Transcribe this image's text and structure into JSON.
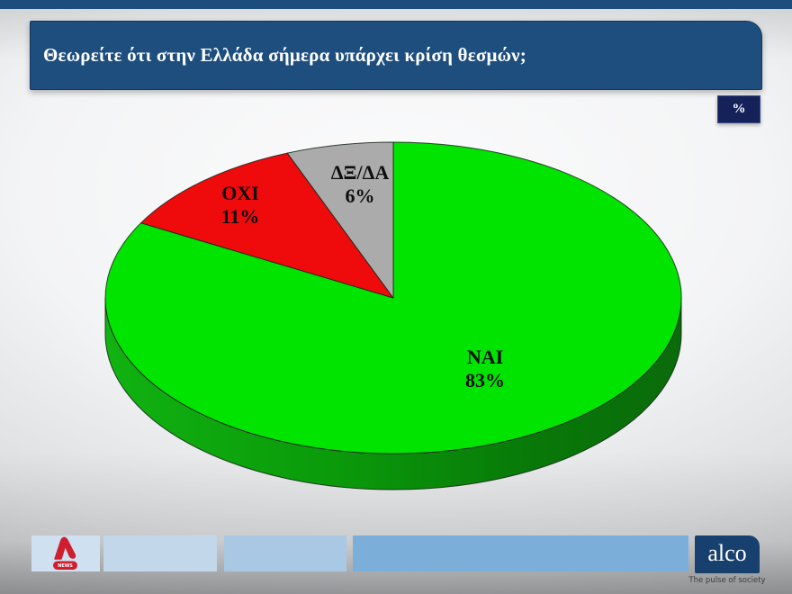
{
  "header": {
    "title": "Θεωρείτε ότι στην Ελλάδα σήμερα υπάρχει κρίση θεσμών;"
  },
  "unit_badge": {
    "label": "%"
  },
  "chart_data": {
    "type": "pie",
    "style": "3d",
    "start_angle_deg": 0,
    "direction": "clockwise",
    "unit": "%",
    "categories": [
      "NAI",
      "OXI",
      "ΔΞ/ΔΑ"
    ],
    "values": [
      83,
      11,
      6
    ],
    "slices": [
      {
        "label": "NAI",
        "value": 83,
        "pct": "83%",
        "color": "#00e400"
      },
      {
        "label": "OXI",
        "value": 11,
        "pct": "11%",
        "color": "#ef0b0b"
      },
      {
        "label": "ΔΞ/ΔΑ",
        "value": 6,
        "pct": "6%",
        "color": "#ababab"
      }
    ],
    "side_colors": {
      "left": "#11b211",
      "mid": "#0a9a0a",
      "right": "#0a6b0a"
    }
  },
  "footer": {
    "alpha_news": {
      "news_label": "NEWS",
      "logo_color": "#cf1f2f"
    },
    "alco": {
      "name": "alco",
      "tagline": "The pulse of society"
    }
  },
  "colors": {
    "header_navy": "#1d4e7e",
    "badge_navy": "#152259",
    "alco_navy": "#17406e"
  }
}
